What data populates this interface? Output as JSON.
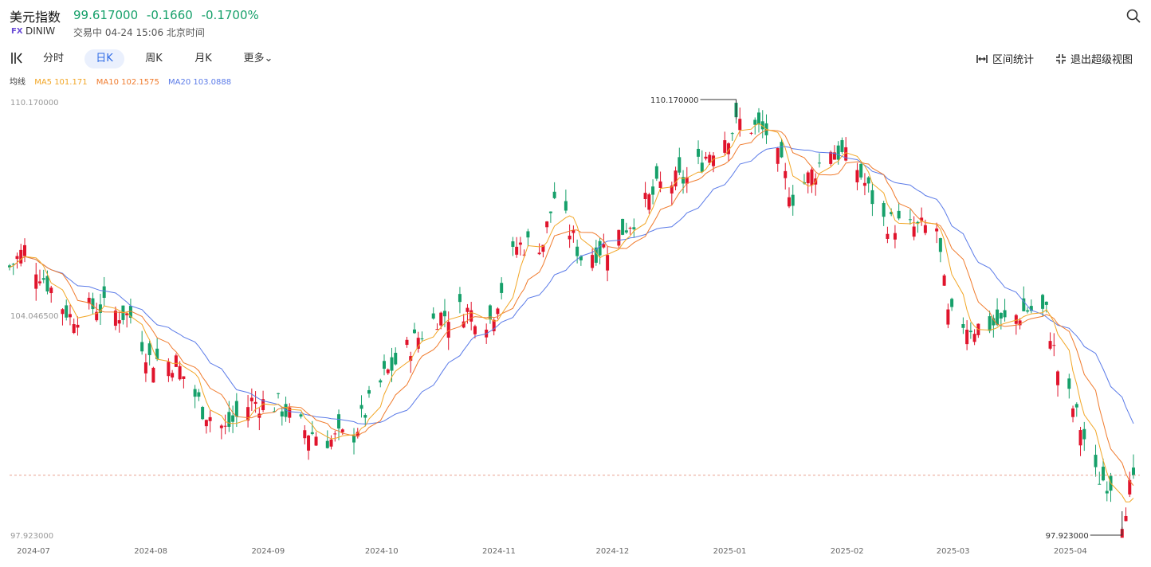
{
  "header": {
    "title": "美元指数",
    "price": "99.617000",
    "change": "-0.1660",
    "change_pct": "-0.1700%",
    "badge": "FX",
    "code": "DINIW",
    "status": "交易中 04-24 15:06 北京时间",
    "colors": {
      "down": "#16a06a",
      "up": "#e0142c"
    }
  },
  "toolbar": {
    "tabs": [
      "分时",
      "日K",
      "周K",
      "月K",
      "更多"
    ],
    "active_tab": "日K",
    "interval_stats": "区间统计",
    "exit_super_view": "退出超级视图"
  },
  "ma": {
    "label": "均线",
    "ma5": "MA5 101.171",
    "ma10": "MA10 102.1575",
    "ma20": "MA20 103.0888",
    "colors": {
      "ma5": "#f2a626",
      "ma10": "#f07b2d",
      "ma20": "#5b7be8"
    }
  },
  "chart_data": {
    "type": "candlestick",
    "y_axis_labels": [
      "110.170000",
      "104.046500",
      "97.923000"
    ],
    "ylim": [
      97.923,
      110.17
    ],
    "x_tick_labels": [
      "2024-07",
      "2024-08",
      "2024-09",
      "2024-10",
      "2024-11",
      "2024-12",
      "2025-01",
      "2025-02",
      "2025-03",
      "2025-04"
    ],
    "high_marker": "110.170000",
    "low_marker": "97.923000",
    "last_price": 99.617,
    "close_trend": [
      [
        "2024-07-01",
        105.5
      ],
      [
        "2024-07-05",
        106.0
      ],
      [
        "2024-07-10",
        105.2
      ],
      [
        "2024-07-17",
        104.1
      ],
      [
        "2024-07-24",
        104.4
      ],
      [
        "2024-08-02",
        104.1
      ],
      [
        "2024-08-07",
        102.9
      ],
      [
        "2024-08-14",
        102.8
      ],
      [
        "2024-08-21",
        101.5
      ],
      [
        "2024-08-27",
        100.9
      ],
      [
        "2024-09-03",
        101.7
      ],
      [
        "2024-09-10",
        101.6
      ],
      [
        "2024-09-17",
        100.9
      ],
      [
        "2024-09-24",
        100.6
      ],
      [
        "2024-09-30",
        100.8
      ],
      [
        "2024-10-08",
        102.4
      ],
      [
        "2024-10-15",
        103.3
      ],
      [
        "2024-10-22",
        104.1
      ],
      [
        "2024-10-29",
        104.3
      ],
      [
        "2024-11-05",
        104.0
      ],
      [
        "2024-11-12",
        106.1
      ],
      [
        "2024-11-19",
        106.2
      ],
      [
        "2024-11-22",
        107.5
      ],
      [
        "2024-11-29",
        105.8
      ],
      [
        "2024-12-06",
        106.1
      ],
      [
        "2024-12-13",
        106.9
      ],
      [
        "2024-12-20",
        107.8
      ],
      [
        "2024-12-27",
        108.0
      ],
      [
        "2025-01-03",
        108.9
      ],
      [
        "2025-01-10",
        109.6
      ],
      [
        "2025-01-17",
        109.3
      ],
      [
        "2025-01-24",
        107.5
      ],
      [
        "2025-01-31",
        108.4
      ],
      [
        "2025-02-03",
        108.9
      ],
      [
        "2025-02-10",
        108.3
      ],
      [
        "2025-02-17",
        106.8
      ],
      [
        "2025-02-24",
        106.6
      ],
      [
        "2025-03-03",
        106.6
      ],
      [
        "2025-03-06",
        104.1
      ],
      [
        "2025-03-13",
        103.8
      ],
      [
        "2025-03-20",
        103.9
      ],
      [
        "2025-03-27",
        104.3
      ],
      [
        "2025-04-01",
        104.2
      ],
      [
        "2025-04-04",
        102.6
      ],
      [
        "2025-04-10",
        101.0
      ],
      [
        "2025-04-14",
        99.6
      ],
      [
        "2025-04-18",
        99.4
      ],
      [
        "2025-04-21",
        98.4
      ],
      [
        "2025-04-24",
        99.617
      ]
    ]
  }
}
